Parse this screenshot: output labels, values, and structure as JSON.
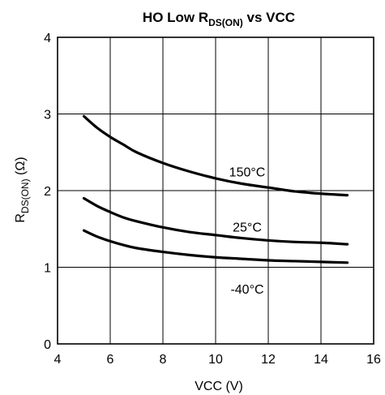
{
  "chart_data": {
    "type": "line",
    "title": {
      "main": "HO Low R",
      "sub": "DS(ON)",
      "tail": " vs VCC"
    },
    "xlabel": "VCC (V)",
    "ylabel": {
      "main": "R",
      "sub": "DS(ON)",
      "tail": " (Ω)"
    },
    "xlim": [
      4,
      16
    ],
    "ylim": [
      0,
      4
    ],
    "xticks": [
      4,
      6,
      8,
      10,
      12,
      14,
      16
    ],
    "yticks": [
      0,
      1,
      2,
      3,
      4
    ],
    "grid": true,
    "series": [
      {
        "name": "150°C",
        "color": "#000000",
        "x": [
          5,
          5.5,
          6,
          6.5,
          7,
          8,
          9,
          10,
          11,
          12,
          13,
          14,
          15
        ],
        "y": [
          2.97,
          2.82,
          2.7,
          2.6,
          2.5,
          2.36,
          2.25,
          2.16,
          2.09,
          2.04,
          1.99,
          1.96,
          1.94
        ],
        "label_at": [
          11.2,
          2.25
        ]
      },
      {
        "name": "25°C",
        "color": "#000000",
        "x": [
          5,
          5.5,
          6,
          6.5,
          7,
          8,
          9,
          10,
          11,
          12,
          13,
          14,
          15
        ],
        "y": [
          1.9,
          1.8,
          1.72,
          1.65,
          1.6,
          1.52,
          1.46,
          1.42,
          1.38,
          1.35,
          1.33,
          1.32,
          1.3
        ],
        "label_at": [
          11.2,
          1.53
        ]
      },
      {
        "name": "-40°C",
        "color": "#000000",
        "x": [
          5,
          5.5,
          6,
          6.5,
          7,
          8,
          9,
          10,
          11,
          12,
          13,
          14,
          15
        ],
        "y": [
          1.48,
          1.4,
          1.34,
          1.29,
          1.25,
          1.2,
          1.16,
          1.13,
          1.11,
          1.09,
          1.08,
          1.07,
          1.06
        ],
        "label_at": [
          11.2,
          0.72
        ]
      }
    ]
  }
}
